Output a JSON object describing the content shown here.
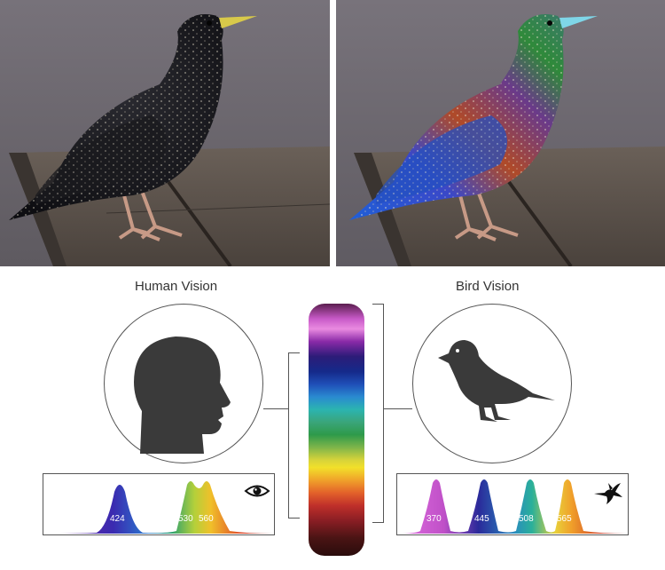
{
  "labels": {
    "human": "Human Vision",
    "bird": "Bird Vision"
  },
  "human_peaks": [
    "424",
    "530",
    "560"
  ],
  "bird_peaks": [
    "370",
    "445",
    "508",
    "565"
  ],
  "icons": [
    "human-head-icon",
    "bird-silhouette-icon",
    "eye-icon",
    "hummingbird-icon"
  ]
}
